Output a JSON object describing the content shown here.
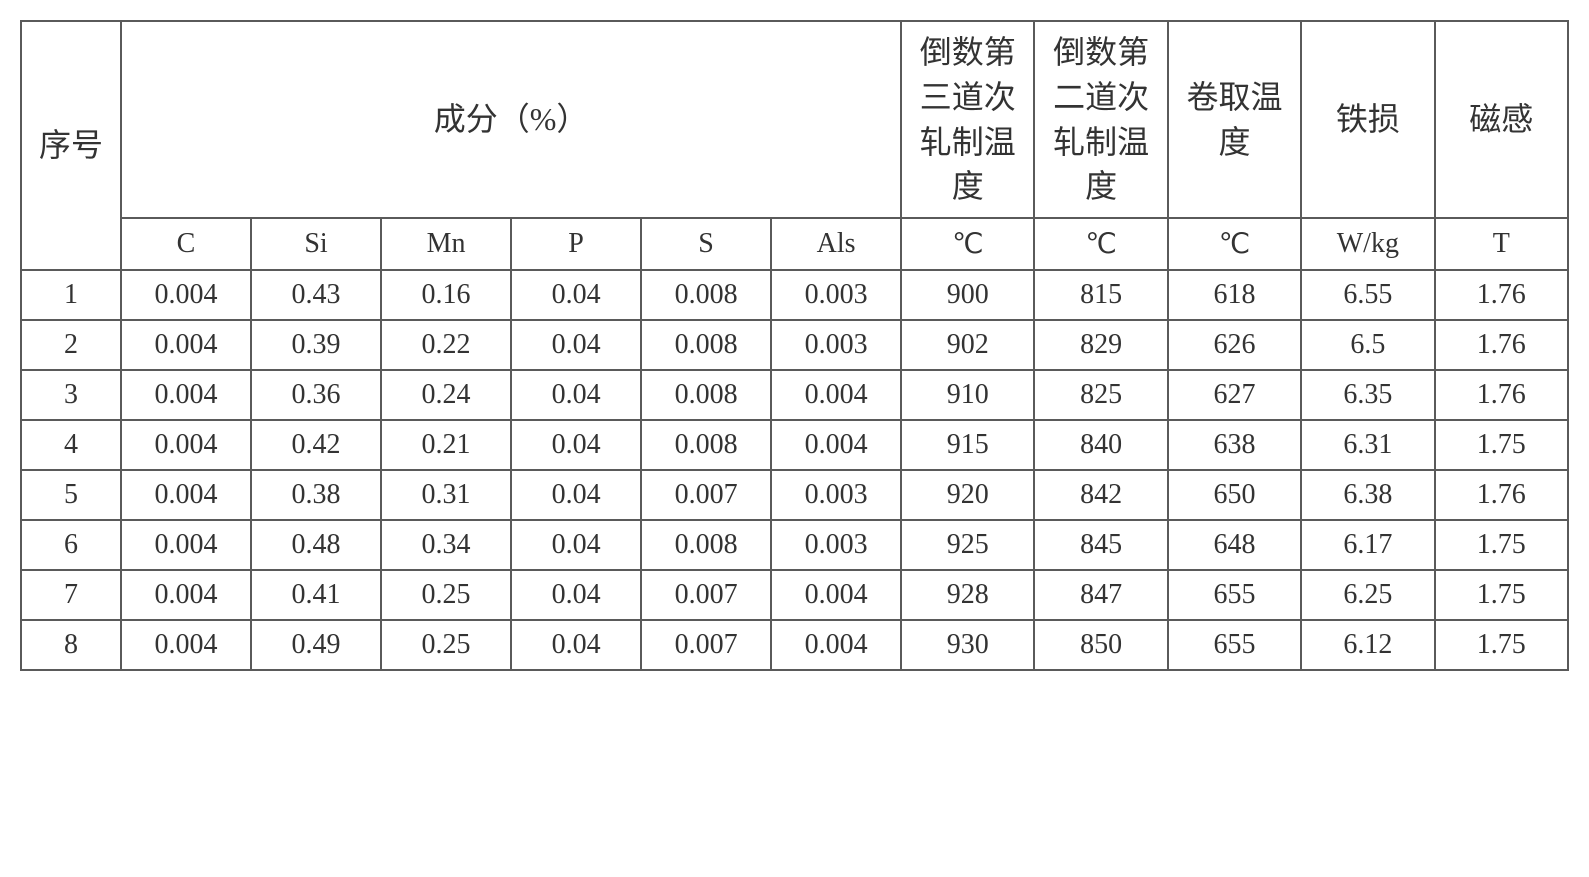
{
  "table": {
    "headers": {
      "row1": {
        "seq": "序号",
        "composition": "成分（%）",
        "temp3": "倒数第三道次轧制温度",
        "temp2": "倒数第二道次轧制温度",
        "coiling": "卷取温度",
        "ironloss": "铁损",
        "magnetic": "磁感"
      },
      "row2": {
        "c": "C",
        "si": "Si",
        "mn": "Mn",
        "p": "P",
        "s": "S",
        "als": "Als",
        "temp3unit": "℃",
        "temp2unit": "℃",
        "coilunit": "℃",
        "ironunit": "W/kg",
        "magunit": "T"
      }
    },
    "rows": [
      {
        "seq": "1",
        "c": "0.004",
        "si": "0.43",
        "mn": "0.16",
        "p": "0.04",
        "s": "0.008",
        "als": "0.003",
        "t3": "900",
        "t2": "815",
        "coil": "618",
        "iron": "6.55",
        "mag": "1.76"
      },
      {
        "seq": "2",
        "c": "0.004",
        "si": "0.39",
        "mn": "0.22",
        "p": "0.04",
        "s": "0.008",
        "als": "0.003",
        "t3": "902",
        "t2": "829",
        "coil": "626",
        "iron": "6.5",
        "mag": "1.76"
      },
      {
        "seq": "3",
        "c": "0.004",
        "si": "0.36",
        "mn": "0.24",
        "p": "0.04",
        "s": "0.008",
        "als": "0.004",
        "t3": "910",
        "t2": "825",
        "coil": "627",
        "iron": "6.35",
        "mag": "1.76"
      },
      {
        "seq": "4",
        "c": "0.004",
        "si": "0.42",
        "mn": "0.21",
        "p": "0.04",
        "s": "0.008",
        "als": "0.004",
        "t3": "915",
        "t2": "840",
        "coil": "638",
        "iron": "6.31",
        "mag": "1.75"
      },
      {
        "seq": "5",
        "c": "0.004",
        "si": "0.38",
        "mn": "0.31",
        "p": "0.04",
        "s": "0.007",
        "als": "0.003",
        "t3": "920",
        "t2": "842",
        "coil": "650",
        "iron": "6.38",
        "mag": "1.76"
      },
      {
        "seq": "6",
        "c": "0.004",
        "si": "0.48",
        "mn": "0.34",
        "p": "0.04",
        "s": "0.008",
        "als": "0.003",
        "t3": "925",
        "t2": "845",
        "coil": "648",
        "iron": "6.17",
        "mag": "1.75"
      },
      {
        "seq": "7",
        "c": "0.004",
        "si": "0.41",
        "mn": "0.25",
        "p": "0.04",
        "s": "0.007",
        "als": "0.004",
        "t3": "928",
        "t2": "847",
        "coil": "655",
        "iron": "6.25",
        "mag": "1.75"
      },
      {
        "seq": "8",
        "c": "0.004",
        "si": "0.49",
        "mn": "0.25",
        "p": "0.04",
        "s": "0.007",
        "als": "0.004",
        "t3": "930",
        "t2": "850",
        "coil": "655",
        "iron": "6.12",
        "mag": "1.75"
      }
    ],
    "styling": {
      "border_color": "#5a5a5a",
      "border_width": 2,
      "background_color": "#ffffff",
      "text_color": "#333333",
      "header_fontsize": 32,
      "cell_fontsize": 28,
      "font_family": "SimSun"
    }
  }
}
